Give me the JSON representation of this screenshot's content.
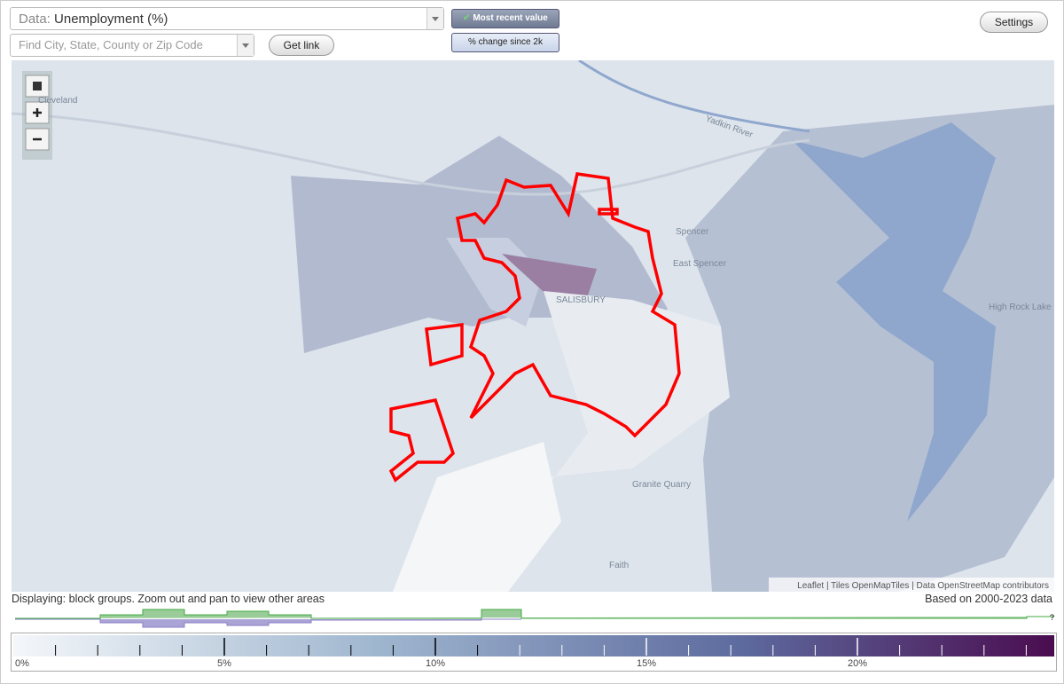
{
  "controls": {
    "data_label": "Data:",
    "data_value": "Unemployment (%)",
    "search_placeholder": "Find City, State, County or Zip Code",
    "get_link": "Get link",
    "mode_buttons": [
      "Most recent value",
      "% change since 2k"
    ],
    "settings": "Settings"
  },
  "map": {
    "place_labels": [
      "Cleveland",
      "Yadkin River",
      "Spencer",
      "East Spencer",
      "SALISBURY",
      "High Rock Lake",
      "Granite Quarry",
      "Faith"
    ],
    "attribution": "Leaflet | Tiles OpenMapTiles | Data OpenStreetMap contributors"
  },
  "status": {
    "displaying": "Displaying: block groups. Zoom out and pan to view other areas",
    "based_on": "Based on 2000-2023 data"
  },
  "legend": {
    "labels": [
      "0%",
      "5%",
      "10%",
      "15%",
      "20%"
    ],
    "unknown": "?"
  }
}
